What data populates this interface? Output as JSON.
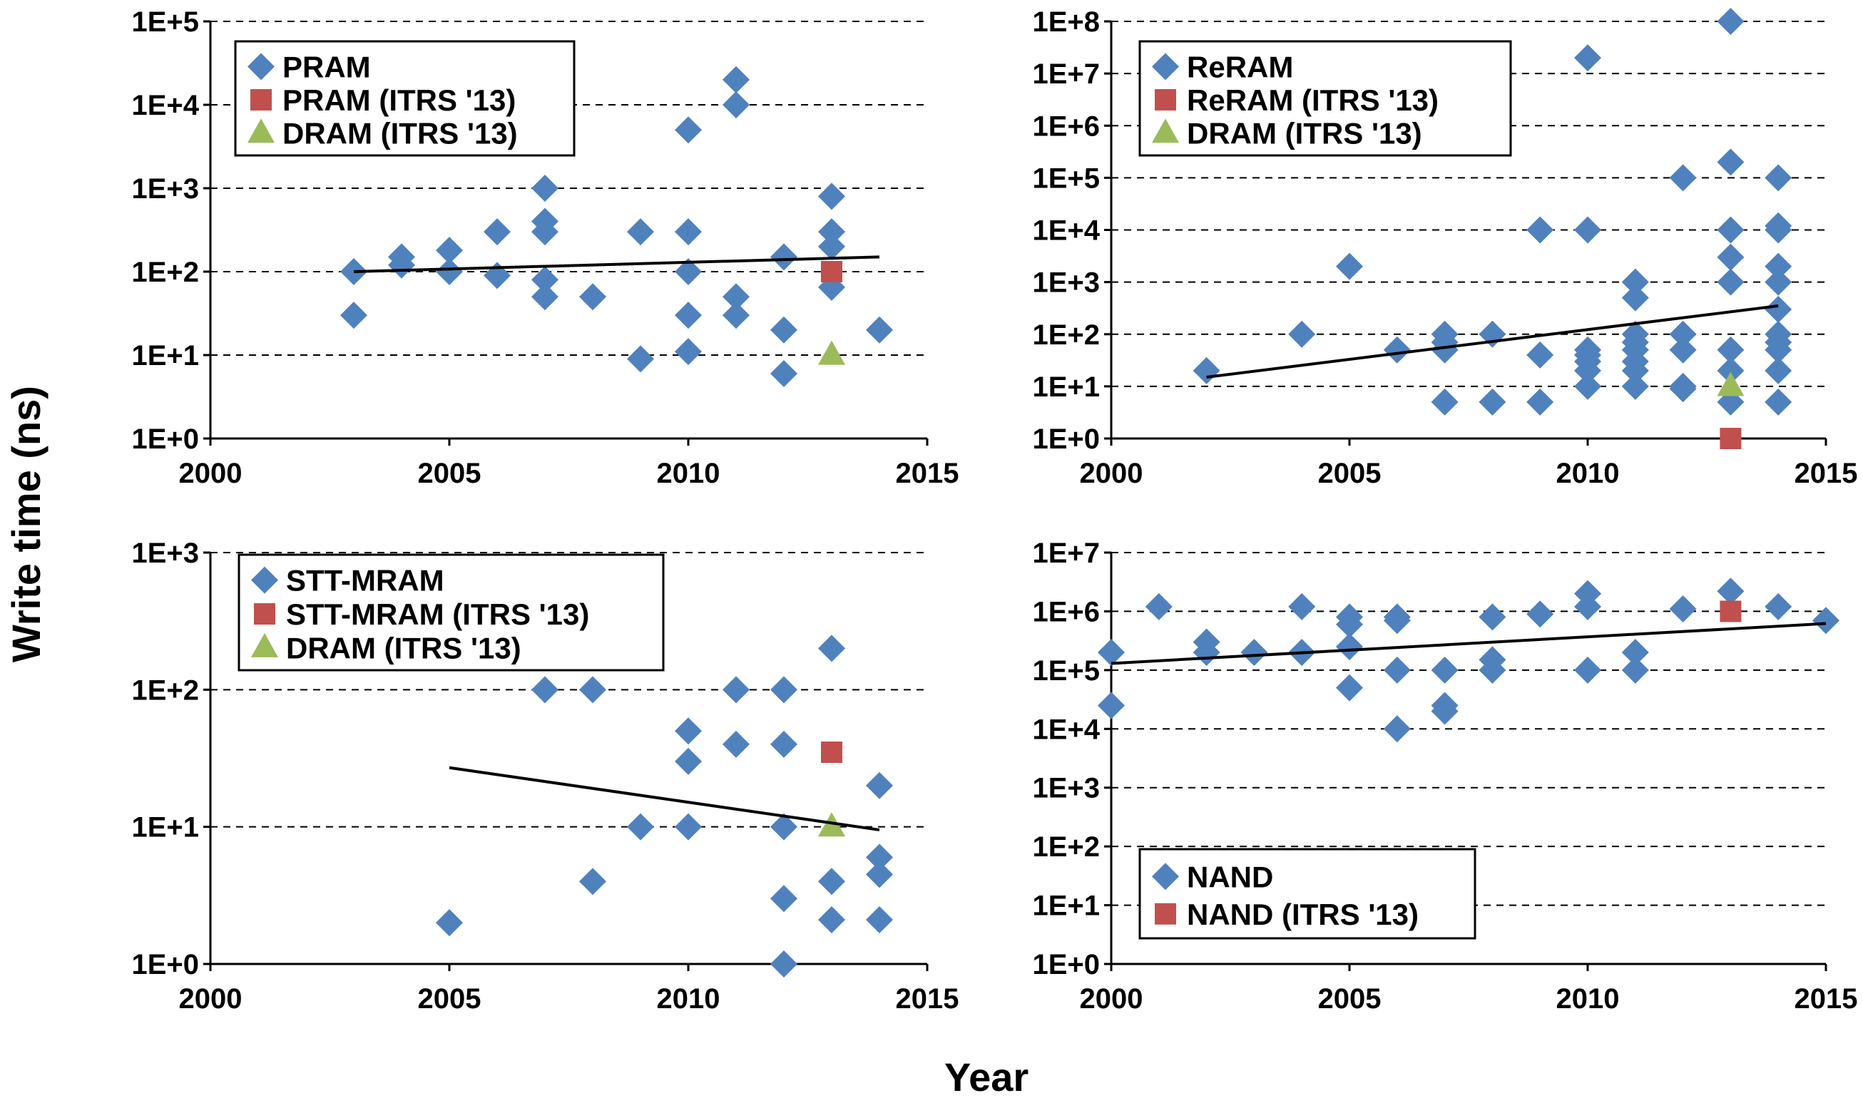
{
  "figure": {
    "ylabel": "Write time (ns)",
    "xlabel": "Year"
  },
  "colors": {
    "diamond": "#4F81BD",
    "square": "#C0504D",
    "triangle": "#9BBB59",
    "trend": "#000000",
    "grid": "#000000"
  },
  "chart_data": [
    {
      "type": "scatter",
      "y_scale": "log",
      "xlim": [
        2000,
        2015
      ],
      "ylim": [
        1,
        100000
      ],
      "x_ticks": [
        "2000",
        "2005",
        "2010",
        "2015"
      ],
      "y_ticks": [
        "1E+0",
        "1E+1",
        "1E+2",
        "1E+3",
        "1E+4",
        "1E+5"
      ],
      "grid": "horizontal dashed",
      "legend_position": "top-left",
      "series": [
        {
          "name": "PRAM",
          "marker": "diamond",
          "points": [
            [
              2003,
              100
            ],
            [
              2003,
              30
            ],
            [
              2004,
              150
            ],
            [
              2004,
              120
            ],
            [
              2005,
              180
            ],
            [
              2005,
              100
            ],
            [
              2006,
              300
            ],
            [
              2006,
              90
            ],
            [
              2007,
              1000
            ],
            [
              2007,
              400
            ],
            [
              2007,
              300
            ],
            [
              2007,
              80
            ],
            [
              2007,
              50
            ],
            [
              2008,
              50
            ],
            [
              2009,
              300
            ],
            [
              2009,
              9
            ],
            [
              2010,
              5000
            ],
            [
              2010,
              300
            ],
            [
              2010,
              100
            ],
            [
              2010,
              30
            ],
            [
              2010,
              11
            ],
            [
              2011,
              20000
            ],
            [
              2011,
              10000
            ],
            [
              2011,
              50
            ],
            [
              2011,
              30
            ],
            [
              2012,
              150
            ],
            [
              2012,
              20
            ],
            [
              2012,
              6
            ],
            [
              2013,
              800
            ],
            [
              2013,
              300
            ],
            [
              2013,
              200
            ],
            [
              2013,
              65
            ],
            [
              2014,
              20
            ]
          ]
        },
        {
          "name": "PRAM (ITRS '13)",
          "marker": "square",
          "points": [
            [
              2013,
              100
            ]
          ]
        },
        {
          "name": "DRAM (ITRS '13)",
          "marker": "triangle",
          "points": [
            [
              2013,
              10
            ]
          ]
        }
      ],
      "trendline": [
        [
          2003,
          100
        ],
        [
          2014,
          150
        ]
      ]
    },
    {
      "type": "scatter",
      "y_scale": "log",
      "xlim": [
        2000,
        2015
      ],
      "ylim": [
        1,
        100000000
      ],
      "x_ticks": [
        "2000",
        "2005",
        "2010",
        "2015"
      ],
      "y_ticks": [
        "1E+0",
        "1E+1",
        "1E+2",
        "1E+3",
        "1E+4",
        "1E+5",
        "1E+6",
        "1E+7",
        "1E+8"
      ],
      "grid": "horizontal dashed",
      "legend_position": "top-left",
      "series": [
        {
          "name": "ReRAM",
          "marker": "diamond",
          "points": [
            [
              2002,
              20
            ],
            [
              2004,
              100
            ],
            [
              2005,
              2000
            ],
            [
              2006,
              50
            ],
            [
              2007,
              100
            ],
            [
              2007,
              70
            ],
            [
              2007,
              50
            ],
            [
              2007,
              5
            ],
            [
              2008,
              100
            ],
            [
              2008,
              5
            ],
            [
              2009,
              10000
            ],
            [
              2009,
              40
            ],
            [
              2009,
              5
            ],
            [
              2010,
              20000000
            ],
            [
              2010,
              10000
            ],
            [
              2010,
              50
            ],
            [
              2010,
              40
            ],
            [
              2010,
              30
            ],
            [
              2010,
              20
            ],
            [
              2010,
              10
            ],
            [
              2011,
              1000
            ],
            [
              2011,
              500
            ],
            [
              2011,
              100
            ],
            [
              2011,
              70
            ],
            [
              2011,
              50
            ],
            [
              2011,
              30
            ],
            [
              2011,
              20
            ],
            [
              2011,
              10
            ],
            [
              2012,
              100000
            ],
            [
              2012,
              100
            ],
            [
              2012,
              50
            ],
            [
              2012,
              10
            ],
            [
              2012,
              9
            ],
            [
              2013,
              100000000
            ],
            [
              2013,
              200000
            ],
            [
              2013,
              10000
            ],
            [
              2013,
              3000
            ],
            [
              2013,
              1000
            ],
            [
              2013,
              50
            ],
            [
              2013,
              20
            ],
            [
              2013,
              5
            ],
            [
              2014,
              100000
            ],
            [
              2014,
              12000
            ],
            [
              2014,
              10000
            ],
            [
              2014,
              2000
            ],
            [
              2014,
              1000
            ],
            [
              2014,
              300
            ],
            [
              2014,
              100
            ],
            [
              2014,
              70
            ],
            [
              2014,
              50
            ],
            [
              2014,
              20
            ],
            [
              2014,
              5
            ]
          ]
        },
        {
          "name": "ReRAM (ITRS '13)",
          "marker": "square",
          "points": [
            [
              2013,
              1
            ]
          ]
        },
        {
          "name": "DRAM (ITRS '13)",
          "marker": "triangle",
          "points": [
            [
              2013,
              10
            ]
          ]
        }
      ],
      "trendline": [
        [
          2002,
          15
        ],
        [
          2014,
          350
        ]
      ]
    },
    {
      "type": "scatter",
      "y_scale": "log",
      "xlim": [
        2000,
        2015
      ],
      "ylim": [
        1,
        1000
      ],
      "x_ticks": [
        "2000",
        "2005",
        "2010",
        "2015"
      ],
      "y_ticks": [
        "1E+0",
        "1E+1",
        "1E+2",
        "1E+3"
      ],
      "grid": "horizontal dashed",
      "legend_position": "top-left",
      "series": [
        {
          "name": "STT-MRAM",
          "marker": "diamond",
          "points": [
            [
              2005,
              2
            ],
            [
              2007,
              100
            ],
            [
              2008,
              100
            ],
            [
              2008,
              4
            ],
            [
              2009,
              10
            ],
            [
              2010,
              50
            ],
            [
              2010,
              30
            ],
            [
              2010,
              10
            ],
            [
              2011,
              100
            ],
            [
              2011,
              40
            ],
            [
              2012,
              100
            ],
            [
              2012,
              40
            ],
            [
              2012,
              10
            ],
            [
              2012,
              3
            ],
            [
              2012,
              1
            ],
            [
              2013,
              200
            ],
            [
              2013,
              4
            ],
            [
              2013,
              2.1
            ],
            [
              2014,
              20
            ],
            [
              2014,
              6
            ],
            [
              2014,
              4.5
            ],
            [
              2014,
              2.1
            ]
          ]
        },
        {
          "name": "STT-MRAM (ITRS '13)",
          "marker": "square",
          "points": [
            [
              2013,
              35
            ]
          ]
        },
        {
          "name": "DRAM (ITRS '13)",
          "marker": "triangle",
          "points": [
            [
              2013,
              10
            ]
          ]
        }
      ],
      "trendline": [
        [
          2005,
          27
        ],
        [
          2014,
          9.5
        ]
      ]
    },
    {
      "type": "scatter",
      "y_scale": "log",
      "xlim": [
        2000,
        2015
      ],
      "ylim": [
        1,
        10000000
      ],
      "x_ticks": [
        "2000",
        "2005",
        "2010",
        "2015"
      ],
      "y_ticks": [
        "1E+0",
        "1E+1",
        "1E+2",
        "1E+3",
        "1E+4",
        "1E+5",
        "1E+6",
        "1E+7"
      ],
      "grid": "horizontal dashed",
      "legend_position": "bottom-left",
      "series": [
        {
          "name": "NAND",
          "marker": "diamond",
          "points": [
            [
              2000,
              200000
            ],
            [
              2000,
              25000
            ],
            [
              2001,
              1200000
            ],
            [
              2002,
              300000
            ],
            [
              2002,
              200000
            ],
            [
              2003,
              200000
            ],
            [
              2004,
              1200000
            ],
            [
              2004,
              200000
            ],
            [
              2005,
              800000
            ],
            [
              2005,
              600000
            ],
            [
              2005,
              250000
            ],
            [
              2005,
              50000
            ],
            [
              2006,
              800000
            ],
            [
              2006,
              700000
            ],
            [
              2006,
              100000
            ],
            [
              2006,
              10000
            ],
            [
              2007,
              100000
            ],
            [
              2007,
              25000
            ],
            [
              2007,
              20000
            ],
            [
              2008,
              800000
            ],
            [
              2008,
              150000
            ],
            [
              2008,
              100000
            ],
            [
              2009,
              900000
            ],
            [
              2010,
              2000000
            ],
            [
              2010,
              1200000
            ],
            [
              2010,
              100000
            ],
            [
              2011,
              200000
            ],
            [
              2011,
              100000
            ],
            [
              2012,
              1100000
            ],
            [
              2013,
              2200000
            ],
            [
              2014,
              1200000
            ],
            [
              2015,
              700000
            ]
          ]
        },
        {
          "name": "NAND (ITRS '13)",
          "marker": "square",
          "points": [
            [
              2013,
              1000000
            ]
          ]
        }
      ],
      "trendline": [
        [
          2000,
          130000
        ],
        [
          2015,
          620000
        ]
      ]
    }
  ]
}
